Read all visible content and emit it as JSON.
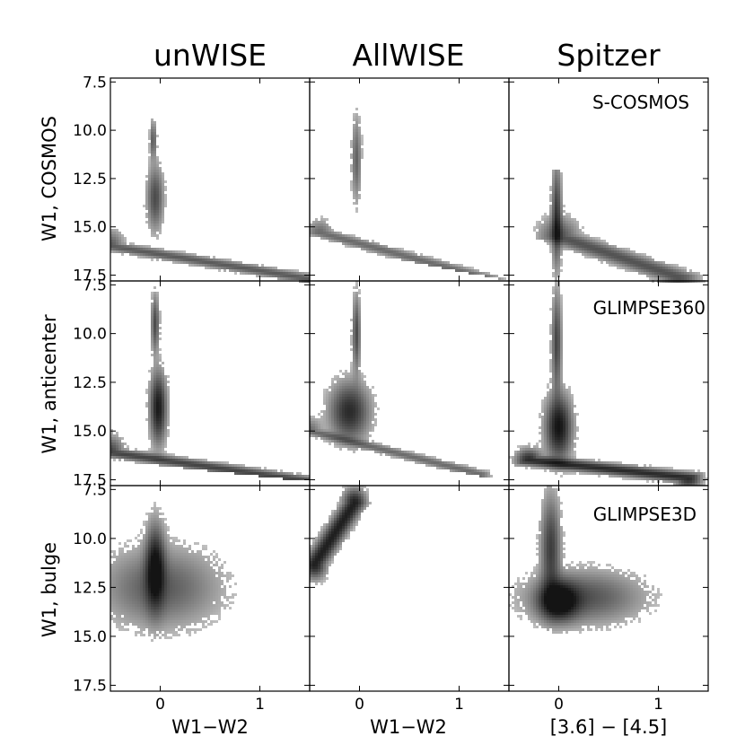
{
  "column_titles": [
    "unWISE",
    "AllWISE",
    "Spitzer"
  ],
  "row_labels": [
    "W1, COSMOS",
    "W1, anticenter",
    "W1, bulge"
  ],
  "x_labels": [
    "W1−W2",
    "W1−W2",
    "[3.6] − [4.5]"
  ],
  "x_ticks": [
    "0",
    "1"
  ],
  "y_ticks": [
    "7.5",
    "10.0",
    "12.5",
    "15.0",
    "17.5"
  ],
  "survey_labels": [
    "S-COSMOS",
    "GLIMPSE360",
    "GLIMPSE3D"
  ],
  "chart_data": {
    "type": "heatmap",
    "description": "3x3 grid of 2D density histograms (color-magnitude diagrams)",
    "xlim": [
      -0.5,
      1.5
    ],
    "ylim": [
      17.8,
      7.3
    ],
    "y_inverted": true,
    "colormap": "Greys",
    "panels": [
      {
        "row": 0,
        "col": 0,
        "features": [
          {
            "kind": "blob",
            "x": -0.07,
            "y": 10.5,
            "sx": 0.02,
            "sy": 0.6,
            "w": 0.45
          },
          {
            "kind": "blob",
            "x": -0.05,
            "y": 13.5,
            "sx": 0.05,
            "sy": 1.0,
            "w": 0.55
          },
          {
            "kind": "band",
            "x0": -0.5,
            "y0": 16.0,
            "x1": 1.5,
            "y1": 17.7,
            "sx": 0.08,
            "sy": 0.5,
            "w": 0.45
          }
        ],
        "cut": [
          [
            -0.5,
            16.6
          ],
          [
            1.5,
            17.9
          ]
        ]
      },
      {
        "row": 0,
        "col": 1,
        "features": [
          {
            "kind": "blob",
            "x": -0.03,
            "y": 11.5,
            "sx": 0.03,
            "sy": 1.3,
            "w": 0.4
          },
          {
            "kind": "band",
            "x0": -0.4,
            "y0": 15.3,
            "x1": 1.3,
            "y1": 17.7,
            "sx": 0.08,
            "sy": 0.4,
            "w": 0.35
          }
        ],
        "cut": [
          [
            -0.5,
            15.8
          ],
          [
            1.5,
            17.8
          ]
        ]
      },
      {
        "row": 0,
        "col": 2,
        "features": [
          {
            "kind": "blob",
            "x": -0.02,
            "y": 14.5,
            "sx": 0.03,
            "sy": 1.6,
            "w": 0.7
          },
          {
            "kind": "band",
            "x0": 0.0,
            "y0": 15.5,
            "x1": 1.2,
            "y1": 17.6,
            "sx": 0.12,
            "sy": 0.6,
            "w": 0.5
          }
        ],
        "cut": [
          [
            -0.5,
            18.0
          ],
          [
            1.5,
            18.0
          ]
        ],
        "ytop": 12.0
      },
      {
        "row": 1,
        "col": 0,
        "features": [
          {
            "kind": "blob",
            "x": -0.05,
            "y": 9.5,
            "sx": 0.025,
            "sy": 0.9,
            "w": 0.55
          },
          {
            "kind": "blob",
            "x": -0.02,
            "y": 13.8,
            "sx": 0.05,
            "sy": 1.1,
            "w": 0.95
          },
          {
            "kind": "band",
            "x0": -0.5,
            "y0": 16.1,
            "x1": 1.5,
            "y1": 17.6,
            "sx": 0.08,
            "sy": 0.5,
            "w": 0.6
          }
        ],
        "cut": [
          [
            -0.5,
            16.5
          ],
          [
            1.5,
            17.6
          ]
        ]
      },
      {
        "row": 1,
        "col": 1,
        "features": [
          {
            "kind": "blob",
            "x": -0.03,
            "y": 10.0,
            "sx": 0.025,
            "sy": 1.2,
            "w": 0.55
          },
          {
            "kind": "blob",
            "x": -0.1,
            "y": 14.0,
            "sx": 0.12,
            "sy": 0.9,
            "w": 0.8
          },
          {
            "kind": "band",
            "x0": -0.5,
            "y0": 15.0,
            "x1": 1.2,
            "y1": 17.2,
            "sx": 0.07,
            "sy": 0.4,
            "w": 0.35
          }
        ],
        "cut": [
          [
            -0.5,
            15.7
          ],
          [
            1.5,
            17.6
          ]
        ]
      },
      {
        "row": 1,
        "col": 2,
        "features": [
          {
            "kind": "blob",
            "x": -0.02,
            "y": 10.5,
            "sx": 0.03,
            "sy": 1.6,
            "w": 0.6
          },
          {
            "kind": "blob",
            "x": 0.0,
            "y": 14.8,
            "sx": 0.08,
            "sy": 1.0,
            "w": 1.0
          },
          {
            "kind": "band",
            "x0": -0.3,
            "y0": 16.5,
            "x1": 1.3,
            "y1": 17.4,
            "sx": 0.08,
            "sy": 0.35,
            "w": 0.8
          }
        ],
        "cut": [
          [
            -0.5,
            18.0
          ],
          [
            1.5,
            18.0
          ]
        ]
      },
      {
        "row": 2,
        "col": 0,
        "features": [
          {
            "kind": "blob",
            "x": -0.05,
            "y": 11.5,
            "sx": 0.06,
            "sy": 1.3,
            "w": 1.0
          },
          {
            "kind": "blob",
            "x": 0.0,
            "y": 12.5,
            "sx": 0.35,
            "sy": 1.2,
            "w": 0.45
          }
        ],
        "cut": [
          [
            -0.5,
            18.0
          ],
          [
            1.5,
            18.0
          ]
        ],
        "ytop": 8.0
      },
      {
        "row": 2,
        "col": 1,
        "features": [
          {
            "kind": "band",
            "x0": -0.45,
            "y0": 11.3,
            "x1": -0.05,
            "y1": 8.2,
            "sx": 0.07,
            "sy": 0.45,
            "w": 0.9
          }
        ],
        "cut": [
          [
            -0.5,
            18.0
          ],
          [
            1.5,
            18.0
          ]
        ]
      },
      {
        "row": 2,
        "col": 2,
        "features": [
          {
            "kind": "blob",
            "x": 0.0,
            "y": 13.2,
            "sx": 0.12,
            "sy": 0.6,
            "w": 1.2
          },
          {
            "kind": "blob",
            "x": -0.08,
            "y": 10.5,
            "sx": 0.06,
            "sy": 1.6,
            "w": 0.65
          },
          {
            "kind": "blob",
            "x": 0.25,
            "y": 13.0,
            "sx": 0.35,
            "sy": 0.8,
            "w": 0.5
          }
        ],
        "cut": [
          [
            -0.5,
            18.0
          ],
          [
            1.5,
            18.0
          ]
        ],
        "ytop": 7.3
      }
    ]
  }
}
